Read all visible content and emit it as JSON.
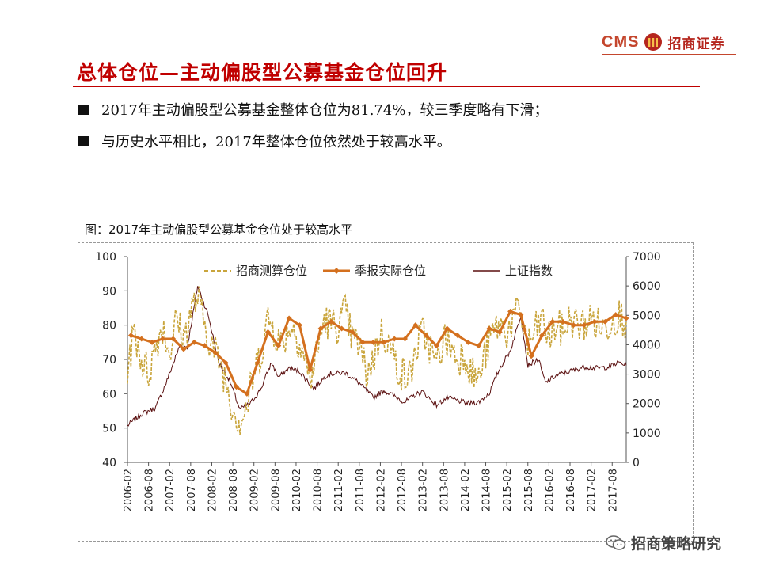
{
  "header": {
    "brand_latin": "CMS",
    "brand_name": "招商证券",
    "title": "总体仓位—主动偏股型公募基金仓位回升"
  },
  "bullets": [
    "2017年主动偏股型公募基金整体仓位为81.74%，较三季度略有下滑；",
    "与历史水平相比，2017年整体仓位依然处于较高水平。"
  ],
  "figure_caption": "图：2017年主动偏股型公募基金仓位处于较高水平",
  "watermark": "招商策略研究",
  "colors": {
    "title_red": "#c00000",
    "estimated": "#c9a53c",
    "reported": "#d4701e",
    "index": "#5a0f0f"
  },
  "chart_data": {
    "type": "line",
    "title": "图：2017年主动偏股型公募基金仓位处于较高水平",
    "x_start": "2006-02",
    "x_end": "2017-12",
    "x_ticks": [
      "2006-02",
      "2006-08",
      "2007-02",
      "2007-08",
      "2008-02",
      "2008-08",
      "2009-02",
      "2009-08",
      "2010-02",
      "2010-08",
      "2011-02",
      "2011-08",
      "2012-02",
      "2012-08",
      "2013-02",
      "2013-08",
      "2014-02",
      "2014-08",
      "2015-02",
      "2015-08",
      "2016-02",
      "2016-08",
      "2017-02",
      "2017-08"
    ],
    "y_left": {
      "min": 40,
      "max": 100,
      "ticks": [
        40,
        50,
        60,
        70,
        80,
        90,
        100
      ]
    },
    "y_right": {
      "min": 0,
      "max": 7000,
      "ticks": [
        0,
        1000,
        2000,
        3000,
        4000,
        5000,
        6000,
        7000
      ]
    },
    "legend": [
      "招商测算仓位",
      "季报实际仓位",
      "上证指数"
    ],
    "legend_position": "top",
    "series": [
      {
        "name": "招商测算仓位",
        "axis": "left",
        "style": "dashed",
        "points": [
          [
            "2006-02",
            68
          ],
          [
            "2006-04",
            78
          ],
          [
            "2006-06",
            70
          ],
          [
            "2006-08",
            66
          ],
          [
            "2006-10",
            74
          ],
          [
            "2006-12",
            80
          ],
          [
            "2007-02",
            72
          ],
          [
            "2007-04",
            82
          ],
          [
            "2007-06",
            76
          ],
          [
            "2007-08",
            84
          ],
          [
            "2007-10",
            88
          ],
          [
            "2007-12",
            80
          ],
          [
            "2008-02",
            74
          ],
          [
            "2008-04",
            70
          ],
          [
            "2008-06",
            64
          ],
          [
            "2008-08",
            56
          ],
          [
            "2008-10",
            52
          ],
          [
            "2008-12",
            56
          ],
          [
            "2009-02",
            66
          ],
          [
            "2009-04",
            72
          ],
          [
            "2009-06",
            82
          ],
          [
            "2009-08",
            78
          ],
          [
            "2009-10",
            74
          ],
          [
            "2009-12",
            80
          ],
          [
            "2010-02",
            78
          ],
          [
            "2010-04",
            72
          ],
          [
            "2010-06",
            64
          ],
          [
            "2010-08",
            72
          ],
          [
            "2010-10",
            82
          ],
          [
            "2010-12",
            80
          ],
          [
            "2011-02",
            80
          ],
          [
            "2011-04",
            84
          ],
          [
            "2011-06",
            76
          ],
          [
            "2011-08",
            74
          ],
          [
            "2011-10",
            66
          ],
          [
            "2011-12",
            70
          ],
          [
            "2012-02",
            78
          ],
          [
            "2012-04",
            76
          ],
          [
            "2012-06",
            70
          ],
          [
            "2012-08",
            66
          ],
          [
            "2012-10",
            64
          ],
          [
            "2012-12",
            72
          ],
          [
            "2013-02",
            78
          ],
          [
            "2013-04",
            74
          ],
          [
            "2013-06",
            68
          ],
          [
            "2013-08",
            76
          ],
          [
            "2013-10",
            74
          ],
          [
            "2013-12",
            70
          ],
          [
            "2014-02",
            72
          ],
          [
            "2014-04",
            66
          ],
          [
            "2014-06",
            64
          ],
          [
            "2014-08",
            72
          ],
          [
            "2014-10",
            78
          ],
          [
            "2014-12",
            80
          ],
          [
            "2015-02",
            78
          ],
          [
            "2015-04",
            82
          ],
          [
            "2015-06",
            84
          ],
          [
            "2015-08",
            74
          ],
          [
            "2015-10",
            78
          ],
          [
            "2015-12",
            82
          ],
          [
            "2016-02",
            76
          ],
          [
            "2016-04",
            80
          ],
          [
            "2016-06",
            78
          ],
          [
            "2016-08",
            82
          ],
          [
            "2016-10",
            80
          ],
          [
            "2016-12",
            80
          ],
          [
            "2017-02",
            82
          ],
          [
            "2017-04",
            80
          ],
          [
            "2017-06",
            79
          ],
          [
            "2017-08",
            82
          ],
          [
            "2017-10",
            83
          ],
          [
            "2017-12",
            81
          ]
        ]
      },
      {
        "name": "季报实际仓位",
        "axis": "left",
        "style": "solid-marker",
        "points": [
          [
            "2006-03",
            77
          ],
          [
            "2006-06",
            76
          ],
          [
            "2006-09",
            75
          ],
          [
            "2006-12",
            76
          ],
          [
            "2007-03",
            76
          ],
          [
            "2007-06",
            73
          ],
          [
            "2007-09",
            75
          ],
          [
            "2007-12",
            74
          ],
          [
            "2008-03",
            72
          ],
          [
            "2008-06",
            69
          ],
          [
            "2008-09",
            62
          ],
          [
            "2008-12",
            60
          ],
          [
            "2009-03",
            69
          ],
          [
            "2009-06",
            78
          ],
          [
            "2009-09",
            74
          ],
          [
            "2009-12",
            82
          ],
          [
            "2010-03",
            80
          ],
          [
            "2010-06",
            67
          ],
          [
            "2010-09",
            79
          ],
          [
            "2010-12",
            81
          ],
          [
            "2011-03",
            79
          ],
          [
            "2011-06",
            78
          ],
          [
            "2011-09",
            75
          ],
          [
            "2011-12",
            75
          ],
          [
            "2012-03",
            75
          ],
          [
            "2012-06",
            76
          ],
          [
            "2012-09",
            76
          ],
          [
            "2012-12",
            80
          ],
          [
            "2013-03",
            77
          ],
          [
            "2013-06",
            74
          ],
          [
            "2013-09",
            79
          ],
          [
            "2013-12",
            77
          ],
          [
            "2014-03",
            75
          ],
          [
            "2014-06",
            74
          ],
          [
            "2014-09",
            79
          ],
          [
            "2014-12",
            78
          ],
          [
            "2015-03",
            84
          ],
          [
            "2015-06",
            83
          ],
          [
            "2015-09",
            71
          ],
          [
            "2015-12",
            77
          ],
          [
            "2016-03",
            81
          ],
          [
            "2016-06",
            81
          ],
          [
            "2016-09",
            80
          ],
          [
            "2016-12",
            80
          ],
          [
            "2017-03",
            81
          ],
          [
            "2017-06",
            81
          ],
          [
            "2017-09",
            83
          ],
          [
            "2017-12",
            82
          ]
        ]
      },
      {
        "name": "上证指数",
        "axis": "right",
        "style": "solid",
        "points": [
          [
            "2006-02",
            1250
          ],
          [
            "2006-06",
            1650
          ],
          [
            "2006-10",
            1850
          ],
          [
            "2007-01",
            2700
          ],
          [
            "2007-05",
            4000
          ],
          [
            "2007-07",
            3900
          ],
          [
            "2007-10",
            6000
          ],
          [
            "2008-01",
            5000
          ],
          [
            "2008-04",
            3400
          ],
          [
            "2008-07",
            2800
          ],
          [
            "2008-10",
            1800
          ],
          [
            "2009-01",
            2000
          ],
          [
            "2009-04",
            2500
          ],
          [
            "2009-07",
            3400
          ],
          [
            "2009-09",
            2900
          ],
          [
            "2009-12",
            3200
          ],
          [
            "2010-03",
            3100
          ],
          [
            "2010-07",
            2500
          ],
          [
            "2010-11",
            3000
          ],
          [
            "2011-04",
            3050
          ],
          [
            "2011-08",
            2700
          ],
          [
            "2011-12",
            2200
          ],
          [
            "2012-03",
            2450
          ],
          [
            "2012-06",
            2250
          ],
          [
            "2012-09",
            2050
          ],
          [
            "2012-12",
            2300
          ],
          [
            "2013-02",
            2400
          ],
          [
            "2013-06",
            1950
          ],
          [
            "2013-09",
            2200
          ],
          [
            "2013-12",
            2100
          ],
          [
            "2014-03",
            2000
          ],
          [
            "2014-06",
            2050
          ],
          [
            "2014-09",
            2350
          ],
          [
            "2014-12",
            3200
          ],
          [
            "2015-03",
            3800
          ],
          [
            "2015-06",
            5000
          ],
          [
            "2015-08",
            3300
          ],
          [
            "2015-11",
            3500
          ],
          [
            "2016-01",
            2700
          ],
          [
            "2016-04",
            2950
          ],
          [
            "2016-08",
            3100
          ],
          [
            "2016-12",
            3250
          ],
          [
            "2017-04",
            3200
          ],
          [
            "2017-07",
            3250
          ],
          [
            "2017-10",
            3400
          ],
          [
            "2017-12",
            3300
          ]
        ]
      }
    ]
  }
}
